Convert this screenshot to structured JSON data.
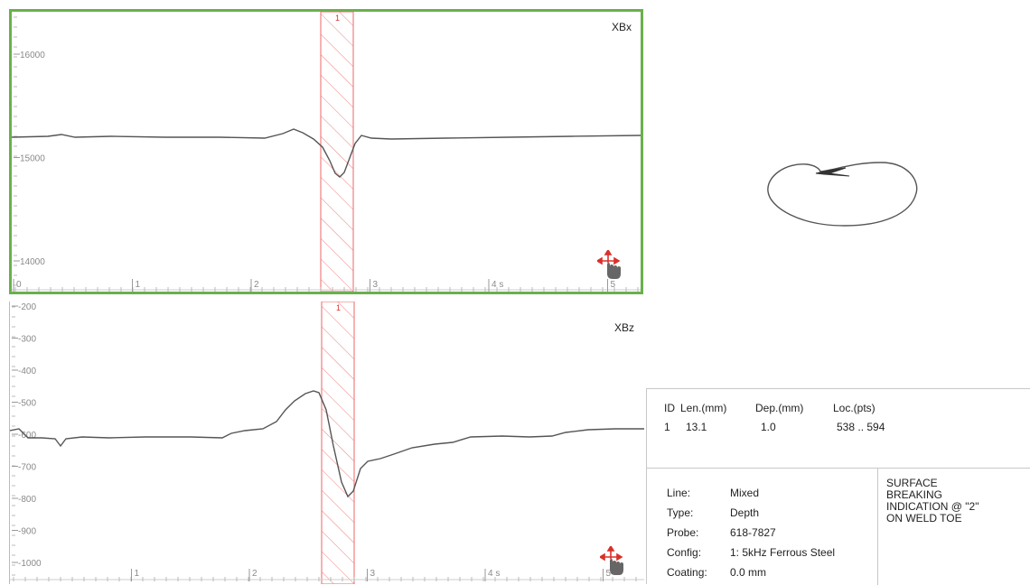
{
  "plots": {
    "xbx": {
      "channel_label": "XBx",
      "y_ticks": [
        {
          "label": "16000",
          "value": 16000
        },
        {
          "label": "15000",
          "value": 15000
        },
        {
          "label": "14000",
          "value": 14000
        }
      ],
      "x_ticks": [
        {
          "label": "0",
          "value": 0
        },
        {
          "label": "1",
          "value": 1
        },
        {
          "label": "2",
          "value": 2
        },
        {
          "label": "3",
          "value": 3
        },
        {
          "label": "4 s",
          "value": 4
        },
        {
          "label": "5",
          "value": 5
        }
      ],
      "marker_label": "1"
    },
    "xbz": {
      "channel_label": "XBz",
      "y_ticks": [
        {
          "label": "-200",
          "value": -200
        },
        {
          "label": "-300",
          "value": -300
        },
        {
          "label": "-400",
          "value": -400
        },
        {
          "label": "-500",
          "value": -500
        },
        {
          "label": "-600",
          "value": -600
        },
        {
          "label": "-700",
          "value": -700
        },
        {
          "label": "-800",
          "value": -800
        },
        {
          "label": "-900",
          "value": -900
        },
        {
          "label": "-1000",
          "value": -1000
        }
      ],
      "x_ticks": [
        {
          "label": "1",
          "value": 1
        },
        {
          "label": "2",
          "value": 2
        },
        {
          "label": "3",
          "value": 3
        },
        {
          "label": "4 s",
          "value": 4
        },
        {
          "label": "5",
          "value": 5
        }
      ],
      "marker_label": "1"
    }
  },
  "indication_table": {
    "headers": [
      "ID",
      "Len.(mm)",
      "Dep.(mm)",
      "Loc.(pts)"
    ],
    "rows": [
      [
        "1",
        "13.1",
        "1.0",
        "538 .. 594"
      ]
    ]
  },
  "info": {
    "fields": [
      {
        "key": "Line:",
        "value": "Mixed"
      },
      {
        "key": "Type:",
        "value": "Depth"
      },
      {
        "key": "Probe:",
        "value": "618-7827"
      },
      {
        "key": "Config:",
        "value": "1: 5kHz Ferrous Steel"
      },
      {
        "key": "Coating:",
        "value": "0.0 mm"
      }
    ],
    "note": "SURFACE\nBREAKING\nINDICATION @ \"2\"\nON WELD TOE"
  },
  "colors": {
    "active_border": "#6ab04c",
    "marker": "#f08080",
    "signal": "#555555"
  },
  "icons": [
    "move-cursor-icon"
  ]
}
